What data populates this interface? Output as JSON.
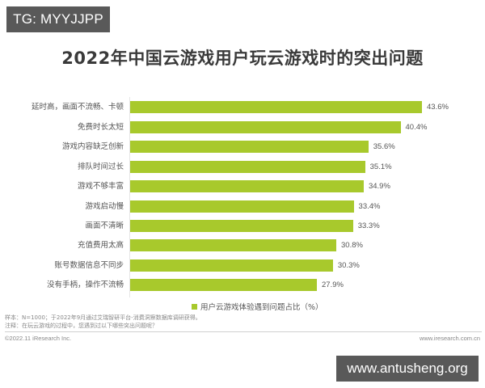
{
  "overlay": {
    "top_badge": "TG: MYYJJPP",
    "bottom_badge": "www.antusheng.org"
  },
  "colors": {
    "bar": "#a8c92c",
    "badge_bg": "#595959",
    "title": "#3a3a3a"
  },
  "chart_data": {
    "type": "bar",
    "orientation": "horizontal",
    "title": "2022年中国云游戏用户玩云游戏时的突出问题",
    "categories": [
      "延时高，画面不流畅、卡顿",
      "免费时长太短",
      "游戏内容缺乏创新",
      "排队时间过长",
      "游戏不够丰富",
      "游戏启动慢",
      "画面不清晰",
      "充值费用太高",
      "账号数据信息不同步",
      "没有手柄，操作不流畅"
    ],
    "values": [
      43.6,
      40.4,
      35.6,
      35.1,
      34.9,
      33.4,
      33.3,
      30.8,
      30.3,
      27.9
    ],
    "value_labels": [
      "43.6%",
      "40.4%",
      "35.6%",
      "35.1%",
      "34.9%",
      "33.4%",
      "33.3%",
      "30.8%",
      "30.3%",
      "27.9%"
    ],
    "series": [
      {
        "name": "用户云游戏体验遇到问题占比（%）",
        "values": [
          43.6,
          40.4,
          35.6,
          35.1,
          34.9,
          33.4,
          33.3,
          30.8,
          30.3,
          27.9
        ]
      }
    ],
    "xlabel": "",
    "ylabel": "",
    "unit": "%",
    "grid": false,
    "legend_position": "bottom-center"
  },
  "legend": {
    "label": "用户云游戏体验遇到问题占比（%）"
  },
  "footer": {
    "sample_note": "样本：N=1000；于2022年9月通过艾瑞智研平台-消费洞察数据库调研获得。",
    "question_note": "注释：在玩云游戏的过程中，您遇到过以下哪些突出问题呢？",
    "copyright": "©2022.11 iResearch Inc.",
    "website": "www.iresearch.com.cn"
  }
}
